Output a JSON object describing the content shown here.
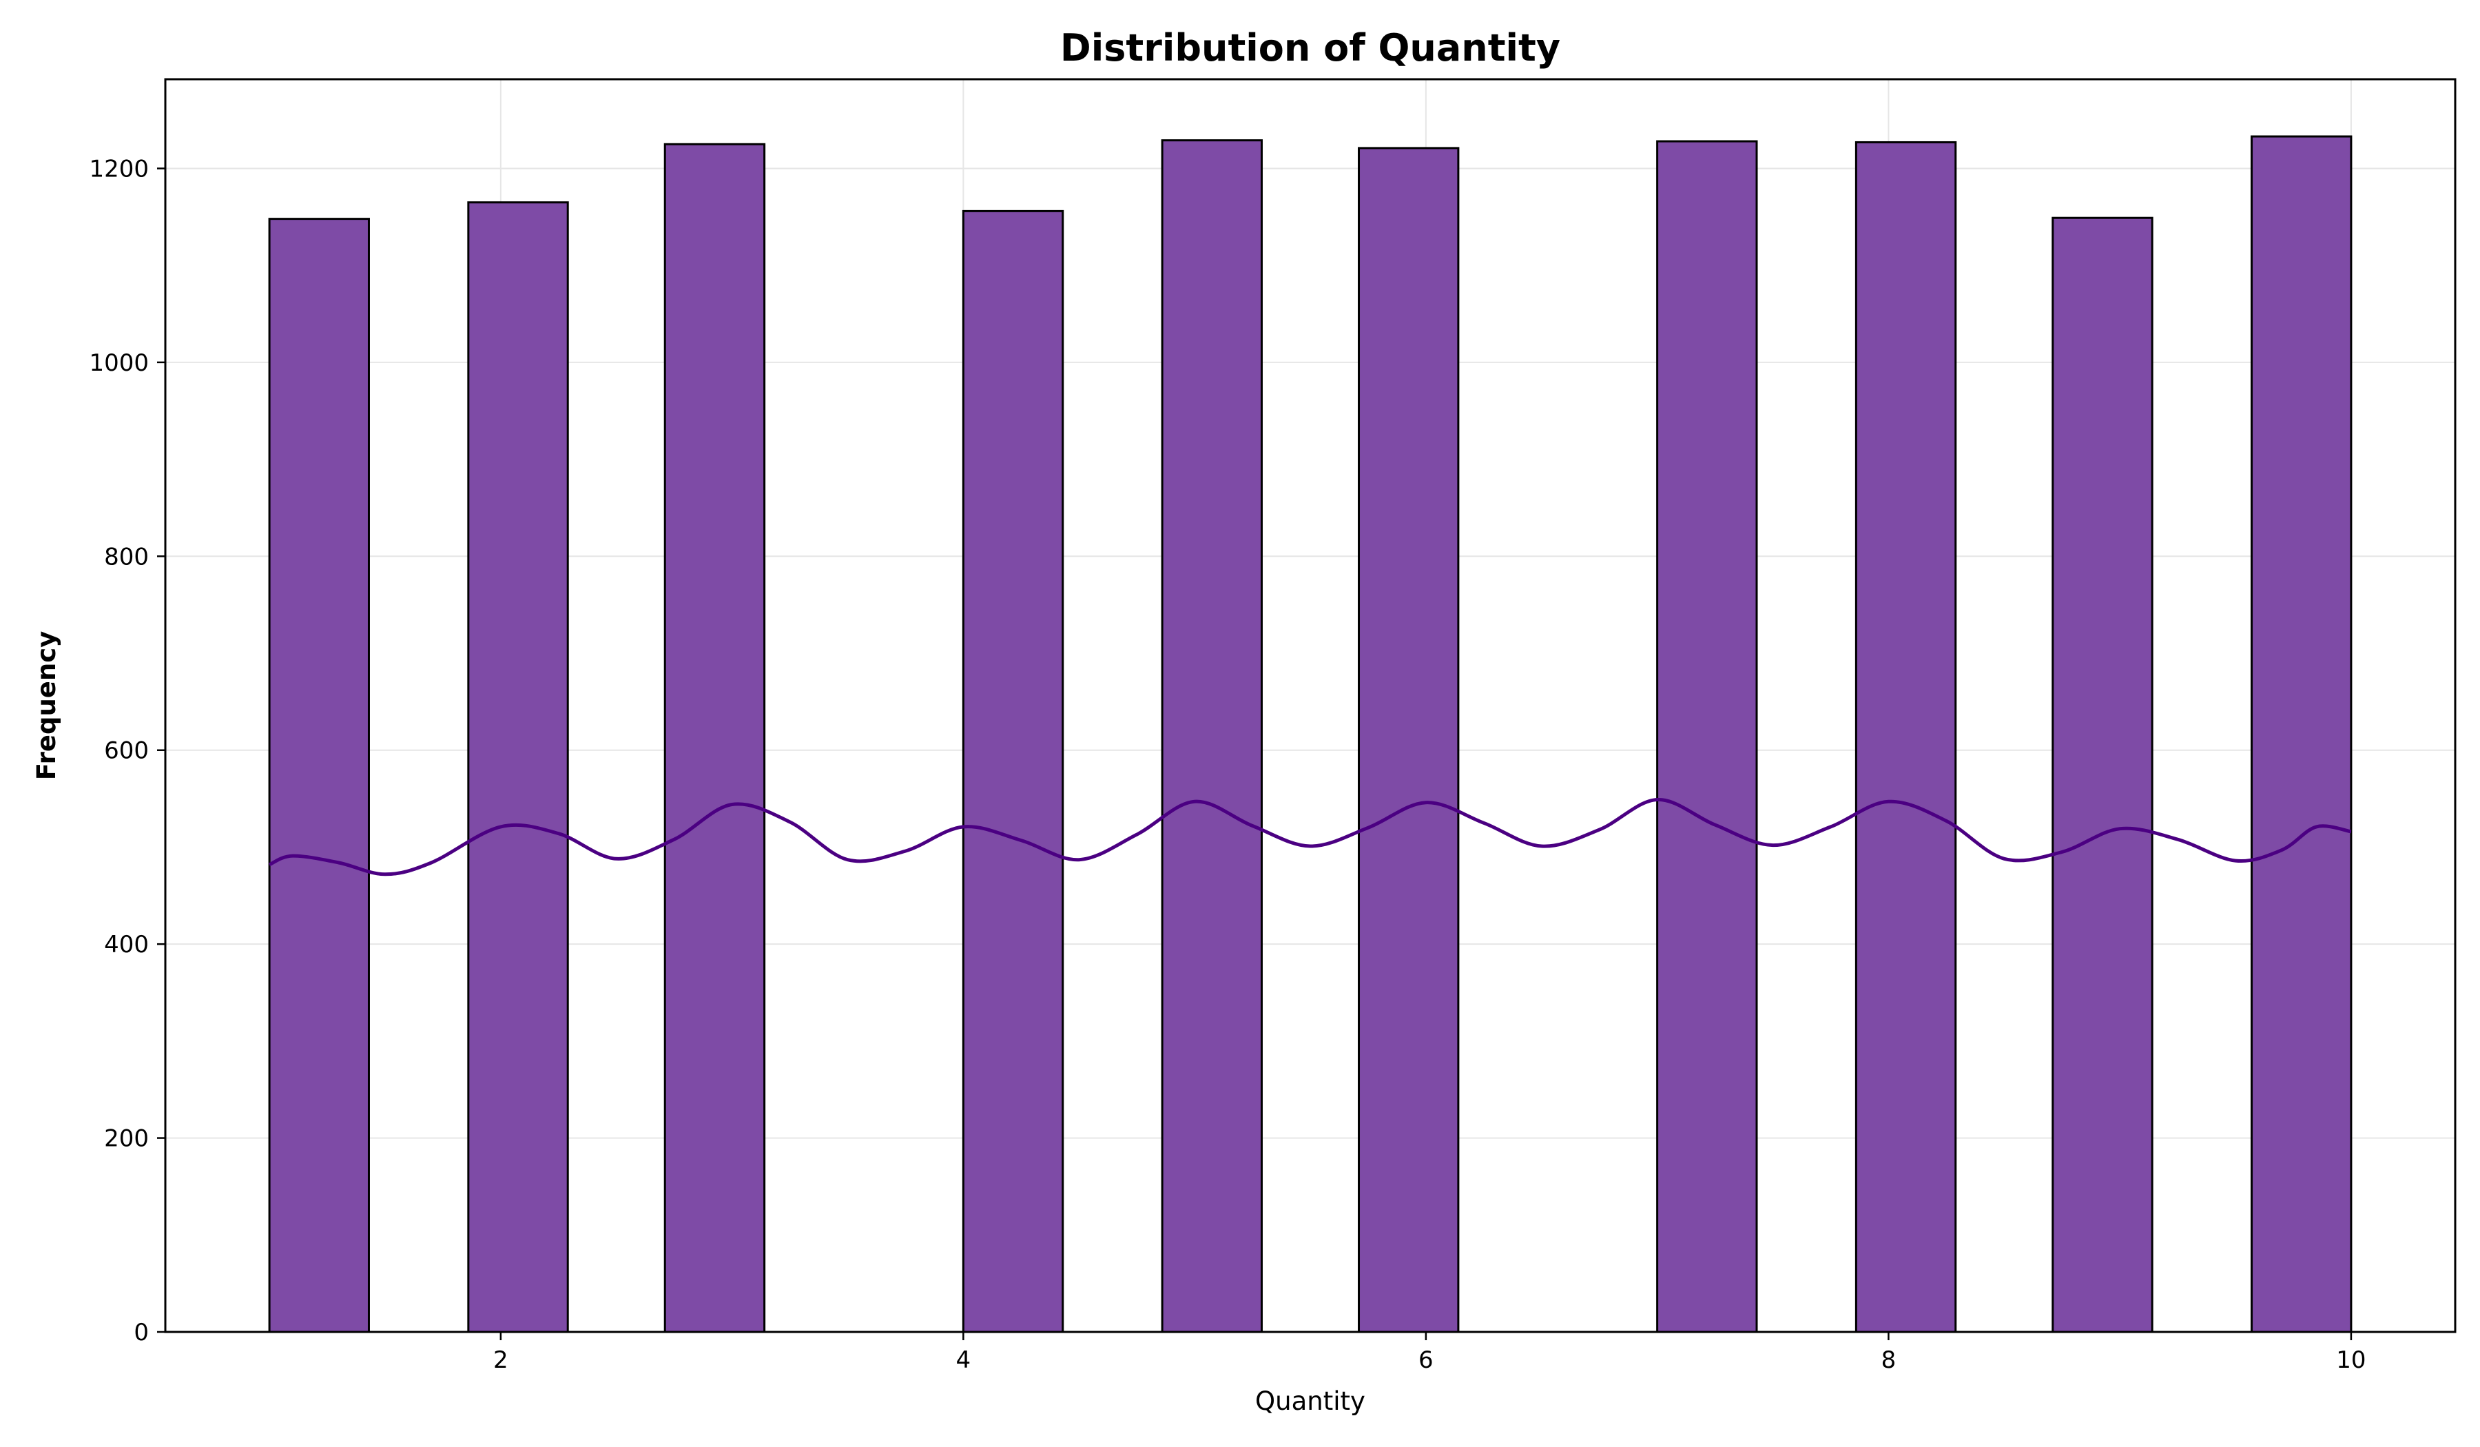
{
  "colors": {
    "bar_fill": "#7e4ba6",
    "bar_edge": "#000000",
    "kde_line": "#4b0082",
    "grid": "#e6e6e6",
    "axis": "#000000",
    "background": "#ffffff"
  },
  "chart_data": {
    "type": "bar",
    "subtype": "histogram-with-kde",
    "title": "Distribution of Quantity",
    "xlabel": "Quantity",
    "ylabel": "Frequency",
    "xlim": [
      0.55,
      10.45
    ],
    "ylim": [
      0,
      1292
    ],
    "x_ticks": [
      2,
      4,
      6,
      8,
      10
    ],
    "y_ticks": [
      0,
      200,
      400,
      600,
      800,
      1000,
      1200
    ],
    "grid": true,
    "legend": "none",
    "bins": [
      {
        "x0": 1.0,
        "x1": 1.43,
        "count": 1148
      },
      {
        "x0": 1.86,
        "x1": 2.29,
        "count": 1165
      },
      {
        "x0": 2.71,
        "x1": 3.14,
        "count": 1225
      },
      {
        "x0": 4.0,
        "x1": 4.43,
        "count": 1156
      },
      {
        "x0": 4.86,
        "x1": 5.29,
        "count": 1229
      },
      {
        "x0": 5.71,
        "x1": 6.14,
        "count": 1221
      },
      {
        "x0": 7.0,
        "x1": 7.43,
        "count": 1228
      },
      {
        "x0": 7.86,
        "x1": 8.29,
        "count": 1227
      },
      {
        "x0": 8.71,
        "x1": 9.14,
        "count": 1149
      },
      {
        "x0": 9.57,
        "x1": 10.0,
        "count": 1233
      }
    ],
    "kde": {
      "x": [
        1.0,
        1.1,
        1.3,
        1.5,
        1.7,
        2.0,
        2.25,
        2.5,
        2.75,
        3.0,
        3.25,
        3.5,
        3.75,
        4.0,
        4.25,
        4.5,
        4.75,
        5.0,
        5.25,
        5.5,
        5.75,
        6.0,
        6.25,
        6.5,
        6.75,
        7.0,
        7.25,
        7.5,
        7.75,
        8.0,
        8.25,
        8.5,
        8.75,
        9.0,
        9.25,
        9.5,
        9.7,
        9.85,
        10.0
      ],
      "y": [
        482,
        491,
        484,
        472,
        484,
        521,
        514,
        488,
        508,
        544,
        526,
        487,
        496,
        521,
        507,
        487,
        513,
        547,
        522,
        501,
        520,
        546,
        525,
        501,
        518,
        549,
        523,
        502,
        521,
        547,
        527,
        488,
        495,
        519,
        508,
        486,
        497,
        521,
        516
      ]
    }
  }
}
